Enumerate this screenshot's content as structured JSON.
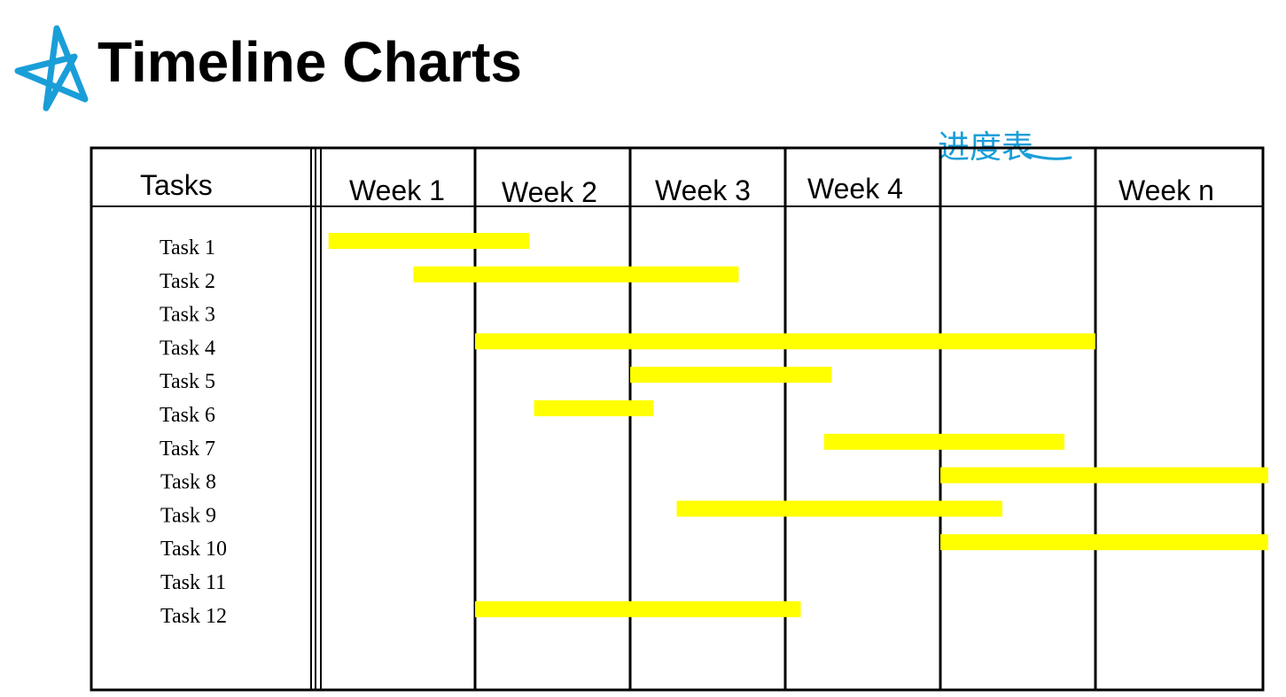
{
  "page": {
    "title": "Timeline Charts",
    "logo_icon": "star-scribble-icon",
    "handwritten_note": "进度表",
    "accent_color": "#1a9ed8"
  },
  "chart_data": {
    "type": "gantt",
    "tasks_header": "Tasks",
    "columns": [
      "Week 1",
      "Week 2",
      "Week 3",
      "Week 4",
      "",
      "Week n"
    ],
    "bar_color": "#ffff00",
    "tasks": [
      {
        "label": "Task 1",
        "start": 0.05,
        "end": 1.35
      },
      {
        "label": "Task 2",
        "start": 0.6,
        "end": 2.7
      },
      {
        "label": "Task 3",
        "start": null,
        "end": null
      },
      {
        "label": "Task 4",
        "start": 1.0,
        "end": 5.0
      },
      {
        "label": "Task 5",
        "start": 2.0,
        "end": 3.3
      },
      {
        "label": "Task 6",
        "start": 1.38,
        "end": 2.15
      },
      {
        "label": "Task 7",
        "start": 3.25,
        "end": 4.8
      },
      {
        "label": "Task 8",
        "start": 4.0,
        "end": 6.1
      },
      {
        "label": "Task 9",
        "start": 2.3,
        "end": 4.4
      },
      {
        "label": "Task 10",
        "start": 4.0,
        "end": 6.1
      },
      {
        "label": "Task 11",
        "start": null,
        "end": null
      },
      {
        "label": "Task 12",
        "start": 1.0,
        "end": 3.1
      }
    ]
  }
}
